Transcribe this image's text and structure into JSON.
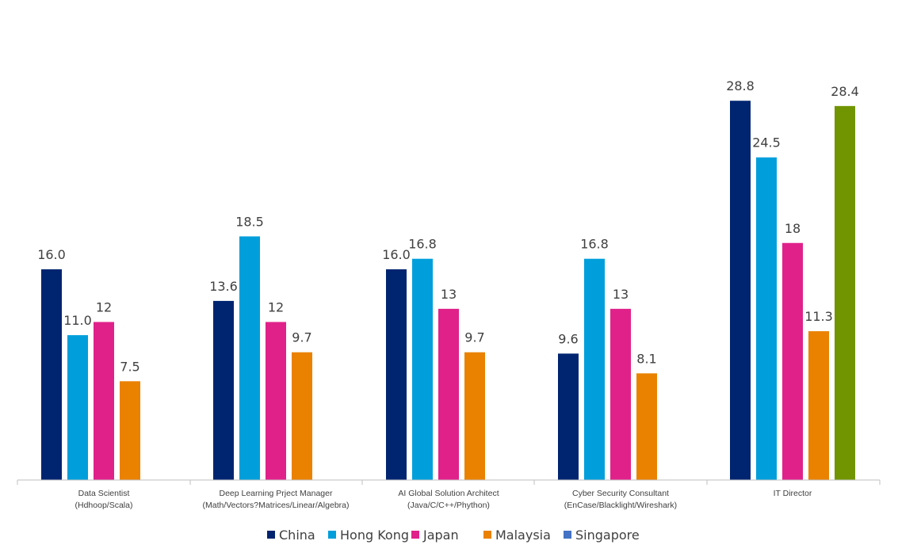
{
  "chart_data": {
    "type": "bar",
    "title": "",
    "xlabel": "",
    "ylabel": "",
    "ylim": [
      0,
      36
    ],
    "grid": false,
    "legend_position": "bottom",
    "categories": [
      [
        "Data Scientist",
        "(Hdhoop/Scala)"
      ],
      [
        "Deep Learning Prject Manager",
        "(Math/Vectors?Matrices/Linear/Algebra)"
      ],
      [
        "AI Global Solution Architect",
        "(Java/C/C++/Phython)"
      ],
      [
        "Cyber Security Consultant",
        "(EnCase/Blacklight/Wireshark)"
      ],
      [
        "IT Director"
      ]
    ],
    "series": [
      {
        "name": "China",
        "color": "#002570",
        "values": [
          16.0,
          13.6,
          16.0,
          9.6,
          28.8
        ],
        "labels": [
          "16.0",
          "13.6",
          "16.0",
          "9.6",
          "28.8"
        ]
      },
      {
        "name": "Hong Kong",
        "color": "#009fdb",
        "values": [
          11.0,
          18.5,
          16.8,
          16.8,
          24.5
        ],
        "labels": [
          "11.0",
          "18.5",
          "16.8",
          "16.8",
          "24.5"
        ]
      },
      {
        "name": "Japan",
        "color": "#e0218a",
        "values": [
          12,
          12,
          13,
          13,
          18
        ],
        "labels": [
          "12",
          "12",
          "13",
          "13",
          "18"
        ]
      },
      {
        "name": "Malaysia",
        "color": "#ea8200",
        "values": [
          7.5,
          9.7,
          9.7,
          8.1,
          11.3
        ],
        "labels": [
          "7.5",
          "9.7",
          "9.7",
          "8.1",
          "11.3"
        ]
      },
      {
        "name": "Singapore",
        "color": "#4472c4",
        "values": [
          null,
          null,
          null,
          null,
          null
        ],
        "labels": [
          "",
          "",
          "",
          "",
          ""
        ]
      },
      {
        "name": "",
        "color": "#719500",
        "values": [
          null,
          null,
          null,
          null,
          28.4
        ],
        "labels": [
          "",
          "",
          "",
          "",
          "28.4"
        ],
        "legend": false
      }
    ]
  }
}
